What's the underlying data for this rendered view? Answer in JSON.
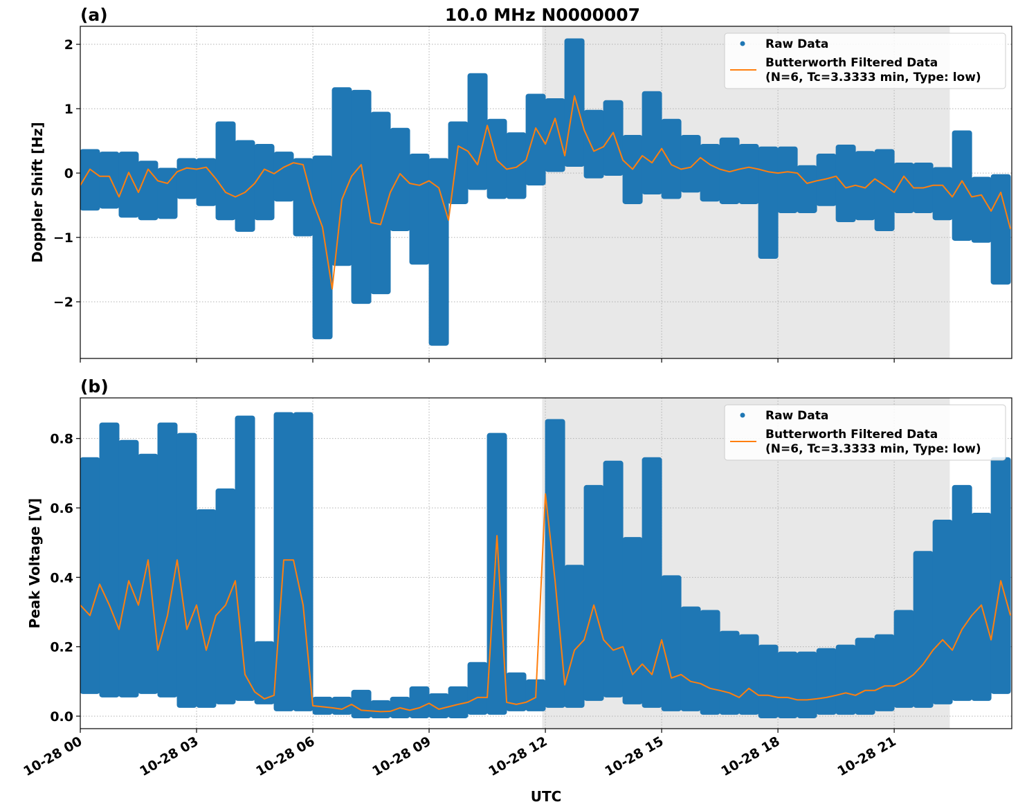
{
  "figure": {
    "title": "10.0 MHz N0000007",
    "xlabel": "UTC"
  },
  "chart_data": [
    {
      "type": "scatter",
      "panel_label": "(a)",
      "ylabel": "Doppler Shift [Hz]",
      "xlim": [
        "00:00",
        "24:02"
      ],
      "ylim": [
        -2.88,
        2.28
      ],
      "grid": true,
      "legend_position": "top-right",
      "shaded_span": [
        "11:55",
        "22:26"
      ],
      "shade_color": "#e8e8e8",
      "x_ticks": [
        "00:00",
        "03:00",
        "06:00",
        "09:00",
        "12:00",
        "15:00",
        "18:00",
        "21:00"
      ],
      "x_tick_labels": [
        "10-28 00",
        "10-28 03",
        "10-28 06",
        "10-28 09",
        "10-28 12",
        "10-28 15",
        "10-28 18",
        "10-28 21"
      ],
      "y_ticks": [
        -2,
        -1,
        0,
        1,
        2
      ],
      "y_tick_labels": [
        "−2",
        "−1",
        "0",
        "1",
        "2"
      ],
      "legend": {
        "raw": "Raw Data",
        "filtered_line1": "Butterworth Filtered Data",
        "filtered_line2": "(N=6, Tc=3.3333 min, Type: low)"
      },
      "raw": {
        "name": "Raw Data",
        "color": "#1f77b4",
        "x": [
          "00:15",
          "00:45",
          "01:15",
          "01:45",
          "02:15",
          "02:45",
          "03:15",
          "03:45",
          "04:15",
          "04:45",
          "05:15",
          "05:45",
          "06:15",
          "06:45",
          "07:15",
          "07:45",
          "08:15",
          "08:45",
          "09:15",
          "09:45",
          "10:15",
          "10:45",
          "11:15",
          "11:45",
          "12:15",
          "12:45",
          "13:15",
          "13:45",
          "14:15",
          "14:45",
          "15:15",
          "15:45",
          "16:15",
          "16:45",
          "17:15",
          "17:45",
          "18:15",
          "18:45",
          "19:15",
          "19:45",
          "20:15",
          "20:45",
          "21:15",
          "21:45",
          "22:15",
          "22:45",
          "23:15",
          "23:45"
        ],
        "min": [
          -0.55,
          -0.52,
          -0.66,
          -0.7,
          -0.68,
          -0.37,
          -0.48,
          -0.7,
          -0.88,
          -0.7,
          -0.41,
          -0.95,
          -2.55,
          -1.41,
          -2.0,
          -1.85,
          -0.87,
          -1.39,
          -2.65,
          -0.45,
          -0.23,
          -0.37,
          -0.37,
          -0.16,
          0.05,
          0.13,
          -0.05,
          -0.01,
          -0.45,
          -0.3,
          -0.37,
          -0.27,
          -0.41,
          -0.45,
          -0.45,
          -1.3,
          -0.59,
          -0.59,
          -0.48,
          -0.73,
          -0.7,
          -0.87,
          -0.59,
          -0.59,
          -0.7,
          -1.02,
          -1.05,
          -1.7
        ],
        "max": [
          0.34,
          0.3,
          0.3,
          0.16,
          0.05,
          0.2,
          0.2,
          0.77,
          0.48,
          0.42,
          0.3,
          0.2,
          0.24,
          1.3,
          1.26,
          0.92,
          0.67,
          0.27,
          0.2,
          0.77,
          1.52,
          0.81,
          0.6,
          1.2,
          1.13,
          2.06,
          0.95,
          1.1,
          0.56,
          1.24,
          0.81,
          0.56,
          0.42,
          0.52,
          0.42,
          0.38,
          0.38,
          0.09,
          0.27,
          0.41,
          0.31,
          0.34,
          0.13,
          0.13,
          0.06,
          0.63,
          -0.09,
          -0.05
        ]
      },
      "filtered": {
        "name": "Butterworth Filtered Data (N=6, Tc=3.3333 min, Type: low)",
        "color": "#ff7f0e",
        "x": [
          "00:00",
          "00:15",
          "00:30",
          "00:45",
          "01:00",
          "01:15",
          "01:30",
          "01:45",
          "02:00",
          "02:15",
          "02:30",
          "02:45",
          "03:00",
          "03:15",
          "03:30",
          "03:45",
          "04:00",
          "04:15",
          "04:30",
          "04:45",
          "05:00",
          "05:15",
          "05:30",
          "05:45",
          "06:00",
          "06:15",
          "06:30",
          "06:45",
          "07:00",
          "07:15",
          "07:30",
          "07:45",
          "08:00",
          "08:15",
          "08:30",
          "08:45",
          "09:00",
          "09:15",
          "09:30",
          "09:45",
          "10:00",
          "10:15",
          "10:30",
          "10:45",
          "11:00",
          "11:15",
          "11:30",
          "11:45",
          "12:00",
          "12:15",
          "12:30",
          "12:45",
          "13:00",
          "13:15",
          "13:30",
          "13:45",
          "14:00",
          "14:15",
          "14:30",
          "14:45",
          "15:00",
          "15:15",
          "15:30",
          "15:45",
          "16:00",
          "16:15",
          "16:30",
          "16:45",
          "17:00",
          "17:15",
          "17:30",
          "17:45",
          "18:00",
          "18:15",
          "18:30",
          "18:45",
          "19:00",
          "19:15",
          "19:30",
          "19:45",
          "20:00",
          "20:15",
          "20:30",
          "20:45",
          "21:00",
          "21:15",
          "21:30",
          "21:45",
          "22:00",
          "22:15",
          "22:30",
          "22:45",
          "23:00",
          "23:15",
          "23:30",
          "23:45",
          "24:00"
        ],
        "y": [
          -0.19,
          0.06,
          -0.05,
          -0.05,
          -0.37,
          0.01,
          -0.3,
          0.06,
          -0.12,
          -0.16,
          0.02,
          0.08,
          0.06,
          0.09,
          -0.09,
          -0.3,
          -0.37,
          -0.3,
          -0.16,
          0.06,
          -0.01,
          0.09,
          0.16,
          0.13,
          -0.44,
          -0.84,
          -1.8,
          -0.41,
          -0.05,
          0.13,
          -0.77,
          -0.8,
          -0.3,
          -0.01,
          -0.16,
          -0.19,
          -0.12,
          -0.23,
          -0.73,
          0.42,
          0.34,
          0.13,
          0.74,
          0.2,
          0.06,
          0.09,
          0.2,
          0.7,
          0.45,
          0.85,
          0.27,
          1.2,
          0.67,
          0.34,
          0.41,
          0.63,
          0.2,
          0.06,
          0.27,
          0.16,
          0.38,
          0.13,
          0.06,
          0.09,
          0.24,
          0.13,
          0.06,
          0.02,
          0.06,
          0.09,
          0.06,
          0.02,
          0.0,
          0.02,
          0.0,
          -0.16,
          -0.12,
          -0.09,
          -0.05,
          -0.23,
          -0.19,
          -0.23,
          -0.09,
          -0.19,
          -0.3,
          -0.05,
          -0.23,
          -0.23,
          -0.19,
          -0.19,
          -0.37,
          -0.12,
          -0.37,
          -0.34,
          -0.59,
          -0.3,
          -0.87
        ]
      }
    },
    {
      "type": "scatter",
      "panel_label": "(b)",
      "ylabel": "Peak Voltage [V]",
      "xlim": [
        "00:00",
        "24:02"
      ],
      "ylim": [
        -0.036,
        0.917
      ],
      "grid": true,
      "legend_position": "top-right",
      "shaded_span": [
        "11:55",
        "22:26"
      ],
      "shade_color": "#e8e8e8",
      "x_ticks": [
        "00:00",
        "03:00",
        "06:00",
        "09:00",
        "12:00",
        "15:00",
        "18:00",
        "21:00"
      ],
      "x_tick_labels": [
        "10-28 00",
        "10-28 03",
        "10-28 06",
        "10-28 09",
        "10-28 12",
        "10-28 15",
        "10-28 18",
        "10-28 21"
      ],
      "y_ticks": [
        0.0,
        0.2,
        0.4,
        0.6,
        0.8
      ],
      "y_tick_labels": [
        "0.0",
        "0.2",
        "0.4",
        "0.6",
        "0.8"
      ],
      "legend": {
        "raw": "Raw Data",
        "filtered_line1": "Butterworth Filtered Data",
        "filtered_line2": "(N=6, Tc=3.3333 min, Type: low)"
      },
      "raw": {
        "name": "Raw Data",
        "color": "#1f77b4",
        "x": [
          "00:15",
          "00:45",
          "01:15",
          "01:45",
          "02:15",
          "02:45",
          "03:15",
          "03:45",
          "04:15",
          "04:45",
          "05:15",
          "05:45",
          "06:15",
          "06:45",
          "07:15",
          "07:45",
          "08:15",
          "08:45",
          "09:15",
          "09:45",
          "10:15",
          "10:45",
          "11:15",
          "11:45",
          "12:15",
          "12:45",
          "13:15",
          "13:45",
          "14:15",
          "14:45",
          "15:15",
          "15:45",
          "16:15",
          "16:45",
          "17:15",
          "17:45",
          "18:15",
          "18:45",
          "19:15",
          "19:45",
          "20:15",
          "20:45",
          "21:15",
          "21:45",
          "22:15",
          "22:45",
          "23:15",
          "23:45"
        ],
        "min": [
          0.07,
          0.06,
          0.06,
          0.07,
          0.06,
          0.03,
          0.03,
          0.04,
          0.05,
          0.04,
          0.02,
          0.02,
          0.01,
          0.01,
          0.0,
          0.0,
          0.0,
          0.0,
          0.0,
          0.0,
          0.01,
          0.01,
          0.02,
          0.02,
          0.03,
          0.03,
          0.05,
          0.06,
          0.04,
          0.03,
          0.02,
          0.02,
          0.01,
          0.01,
          0.01,
          0.0,
          0.0,
          0.0,
          0.01,
          0.01,
          0.01,
          0.02,
          0.03,
          0.03,
          0.04,
          0.05,
          0.05,
          0.07
        ],
        "max": [
          0.74,
          0.84,
          0.79,
          0.75,
          0.84,
          0.81,
          0.59,
          0.65,
          0.86,
          0.21,
          0.87,
          0.87,
          0.05,
          0.05,
          0.07,
          0.04,
          0.05,
          0.08,
          0.06,
          0.08,
          0.15,
          0.81,
          0.12,
          0.1,
          0.85,
          0.43,
          0.66,
          0.73,
          0.51,
          0.74,
          0.4,
          0.31,
          0.3,
          0.24,
          0.23,
          0.2,
          0.18,
          0.18,
          0.19,
          0.2,
          0.22,
          0.23,
          0.3,
          0.47,
          0.56,
          0.66,
          0.58,
          0.74
        ]
      },
      "filtered": {
        "name": "Butterworth Filtered Data (N=6, Tc=3.3333 min, Type: low)",
        "color": "#ff7f0e",
        "x": [
          "00:00",
          "00:15",
          "00:30",
          "00:45",
          "01:00",
          "01:15",
          "01:30",
          "01:45",
          "02:00",
          "02:15",
          "02:30",
          "02:45",
          "03:00",
          "03:15",
          "03:30",
          "03:45",
          "04:00",
          "04:15",
          "04:30",
          "04:45",
          "05:00",
          "05:15",
          "05:30",
          "05:45",
          "06:00",
          "06:15",
          "06:30",
          "06:45",
          "07:00",
          "07:15",
          "07:30",
          "07:45",
          "08:00",
          "08:15",
          "08:30",
          "08:45",
          "09:00",
          "09:15",
          "09:30",
          "09:45",
          "10:00",
          "10:15",
          "10:30",
          "10:45",
          "11:00",
          "11:15",
          "11:30",
          "11:45",
          "12:00",
          "12:15",
          "12:30",
          "12:45",
          "13:00",
          "13:15",
          "13:30",
          "13:45",
          "14:00",
          "14:15",
          "14:30",
          "14:45",
          "15:00",
          "15:15",
          "15:30",
          "15:45",
          "16:00",
          "16:15",
          "16:30",
          "16:45",
          "17:00",
          "17:15",
          "17:30",
          "17:45",
          "18:00",
          "18:15",
          "18:30",
          "18:45",
          "19:00",
          "19:15",
          "19:30",
          "19:45",
          "20:00",
          "20:15",
          "20:30",
          "20:45",
          "21:00",
          "21:15",
          "21:30",
          "21:45",
          "22:00",
          "22:15",
          "22:30",
          "22:45",
          "23:00",
          "23:15",
          "23:30",
          "23:45",
          "24:00"
        ],
        "y": [
          0.32,
          0.29,
          0.38,
          0.32,
          0.25,
          0.39,
          0.32,
          0.45,
          0.19,
          0.29,
          0.45,
          0.25,
          0.32,
          0.19,
          0.29,
          0.32,
          0.39,
          0.12,
          0.07,
          0.05,
          0.06,
          0.45,
          0.45,
          0.32,
          0.03,
          0.027,
          0.024,
          0.02,
          0.034,
          0.017,
          0.015,
          0.013,
          0.014,
          0.024,
          0.017,
          0.024,
          0.037,
          0.02,
          0.027,
          0.034,
          0.04,
          0.054,
          0.054,
          0.52,
          0.04,
          0.034,
          0.04,
          0.054,
          0.64,
          0.39,
          0.09,
          0.19,
          0.22,
          0.32,
          0.22,
          0.19,
          0.2,
          0.12,
          0.15,
          0.12,
          0.22,
          0.11,
          0.12,
          0.1,
          0.094,
          0.08,
          0.074,
          0.067,
          0.054,
          0.08,
          0.06,
          0.06,
          0.054,
          0.054,
          0.047,
          0.047,
          0.05,
          0.054,
          0.06,
          0.067,
          0.06,
          0.074,
          0.074,
          0.087,
          0.087,
          0.1,
          0.12,
          0.15,
          0.19,
          0.22,
          0.19,
          0.25,
          0.29,
          0.32,
          0.22,
          0.39,
          0.29
        ]
      }
    }
  ]
}
